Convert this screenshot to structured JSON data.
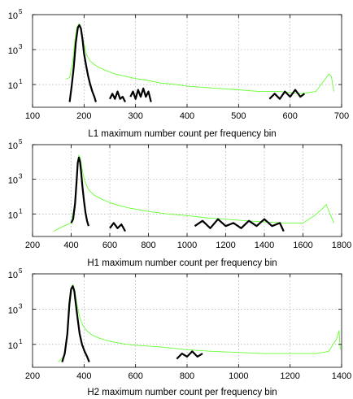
{
  "colors": {
    "green": "#66ff33",
    "black": "#000000",
    "grid": "#999999"
  },
  "chart_data": [
    {
      "type": "line",
      "xlabel": "L1 maximum number count per frequency bin",
      "ylabel": "",
      "xlim": [
        100,
        700
      ],
      "ylim": [
        0.5,
        100000
      ],
      "yscale": "log",
      "xticks": [
        100,
        200,
        300,
        400,
        500,
        600,
        700
      ],
      "yticks": [
        {
          "base": "10",
          "exp": "1",
          "value": 10
        },
        {
          "base": "10",
          "exp": "3",
          "value": 1000
        },
        {
          "base": "10",
          "exp": "5",
          "value": 100000
        }
      ],
      "grid": true,
      "series": [
        {
          "color": "#66ff33",
          "x": [
            165,
            172,
            178,
            182,
            186,
            190,
            193,
            196,
            200,
            205,
            212,
            220,
            230,
            245,
            260,
            280,
            300,
            320,
            350,
            380,
            400,
            430,
            460,
            500,
            540,
            580,
            620,
            650,
            668,
            675,
            680,
            685
          ],
          "y": [
            20,
            25,
            200,
            3000,
            18000,
            30000,
            20000,
            8000,
            2000,
            500,
            220,
            140,
            90,
            60,
            40,
            30,
            22,
            18,
            12,
            10,
            8,
            7,
            6,
            5,
            4,
            4,
            3,
            4,
            20,
            40,
            30,
            4
          ]
        },
        {
          "color": "#000000",
          "x": [
            172,
            176,
            180,
            184,
            188,
            191,
            194,
            197,
            200,
            204,
            208,
            212,
            216,
            220,
            223
          ],
          "y": [
            1,
            8,
            100,
            2500,
            18000,
            25000,
            16000,
            4000,
            600,
            120,
            30,
            10,
            4,
            2,
            1
          ]
        },
        {
          "color": "#000000",
          "x": [
            250,
            255,
            260,
            265,
            270,
            275,
            280
          ],
          "y": [
            1.5,
            3,
            1.5,
            4,
            1.5,
            2,
            1
          ]
        },
        {
          "color": "#000000",
          "x": [
            290,
            295,
            300,
            305,
            310,
            315,
            320,
            325,
            330
          ],
          "y": [
            2,
            4,
            1.5,
            5,
            2,
            6,
            2,
            4,
            1
          ]
        },
        {
          "color": "#000000",
          "x": [
            560,
            570,
            580,
            590,
            600,
            610,
            620,
            628
          ],
          "y": [
            1.5,
            3,
            1.5,
            4,
            2,
            5,
            2,
            3
          ]
        }
      ]
    },
    {
      "type": "line",
      "xlabel": "H1 maximum number count per frequency bin",
      "ylabel": "",
      "xlim": [
        200,
        1800
      ],
      "ylim": [
        0.5,
        100000
      ],
      "yscale": "log",
      "xticks": [
        200,
        400,
        600,
        800,
        1000,
        1200,
        1400,
        1600,
        1800
      ],
      "yticks": [
        {
          "base": "10",
          "exp": "1",
          "value": 10
        },
        {
          "base": "10",
          "exp": "3",
          "value": 1000
        },
        {
          "base": "10",
          "exp": "5",
          "value": 100000
        }
      ],
      "grid": true,
      "series": [
        {
          "color": "#66ff33",
          "x": [
            310,
            360,
            400,
            420,
            432,
            440,
            448,
            458,
            470,
            490,
            520,
            560,
            600,
            650,
            700,
            800,
            900,
            1000,
            1100,
            1200,
            1300,
            1400,
            1500,
            1600,
            1660,
            1700,
            1720,
            1740,
            1760
          ],
          "y": [
            1,
            2,
            3,
            50,
            5000,
            25000,
            15000,
            3000,
            800,
            250,
            120,
            70,
            45,
            30,
            22,
            14,
            10,
            8,
            6,
            5,
            4,
            3.5,
            3,
            3,
            8,
            20,
            35,
            10,
            3
          ]
        },
        {
          "color": "#000000",
          "x": [
            400,
            410,
            420,
            428,
            434,
            440,
            446,
            452,
            458,
            466,
            474,
            482,
            490
          ],
          "y": [
            3,
            5,
            40,
            800,
            9000,
            18000,
            10000,
            2500,
            400,
            60,
            12,
            4,
            2
          ]
        },
        {
          "color": "#000000",
          "x": [
            600,
            620,
            640,
            660,
            680
          ],
          "y": [
            1.5,
            3,
            1.5,
            2.5,
            1
          ]
        },
        {
          "color": "#000000",
          "x": [
            1040,
            1080,
            1120,
            1160,
            1200,
            1240,
            1280,
            1320,
            1360,
            1400,
            1440,
            1480,
            1500
          ],
          "y": [
            2,
            4,
            1.5,
            5,
            2,
            3,
            1.5,
            4,
            2,
            5,
            2,
            3,
            1
          ]
        }
      ]
    },
    {
      "type": "line",
      "xlabel": "H2 maximum number count per frequency bin",
      "ylabel": "",
      "xlim": [
        200,
        1400
      ],
      "ylim": [
        0.5,
        100000
      ],
      "yscale": "log",
      "xticks": [
        200,
        400,
        600,
        800,
        1000,
        1200,
        1400
      ],
      "yticks": [
        {
          "base": "10",
          "exp": "1",
          "value": 10
        },
        {
          "base": "10",
          "exp": "3",
          "value": 1000
        },
        {
          "base": "10",
          "exp": "5",
          "value": 100000
        }
      ],
      "grid": true,
      "series": [
        {
          "color": "#66ff33",
          "x": [
            300,
            320,
            335,
            345,
            352,
            358,
            364,
            372,
            382,
            395,
            410,
            430,
            460,
            500,
            550,
            600,
            700,
            800,
            900,
            1000,
            1100,
            1200,
            1300,
            1350,
            1380,
            1390,
            1395
          ],
          "y": [
            1,
            2,
            20,
            1500,
            15000,
            25000,
            12000,
            2000,
            400,
            120,
            60,
            35,
            22,
            15,
            11,
            9,
            7,
            5,
            4,
            3.5,
            3,
            3,
            3,
            4,
            20,
            60,
            5
          ]
        },
        {
          "color": "#000000",
          "x": [
            315,
            325,
            335,
            343,
            350,
            356,
            362,
            368,
            375,
            383,
            392,
            402,
            412,
            420
          ],
          "y": [
            1,
            3,
            40,
            2000,
            14000,
            20000,
            11000,
            2000,
            300,
            40,
            10,
            4,
            2,
            1
          ]
        },
        {
          "color": "#000000",
          "x": [
            760,
            780,
            800,
            820,
            840,
            860
          ],
          "y": [
            1.5,
            3,
            2,
            4,
            2,
            3
          ]
        }
      ]
    }
  ]
}
